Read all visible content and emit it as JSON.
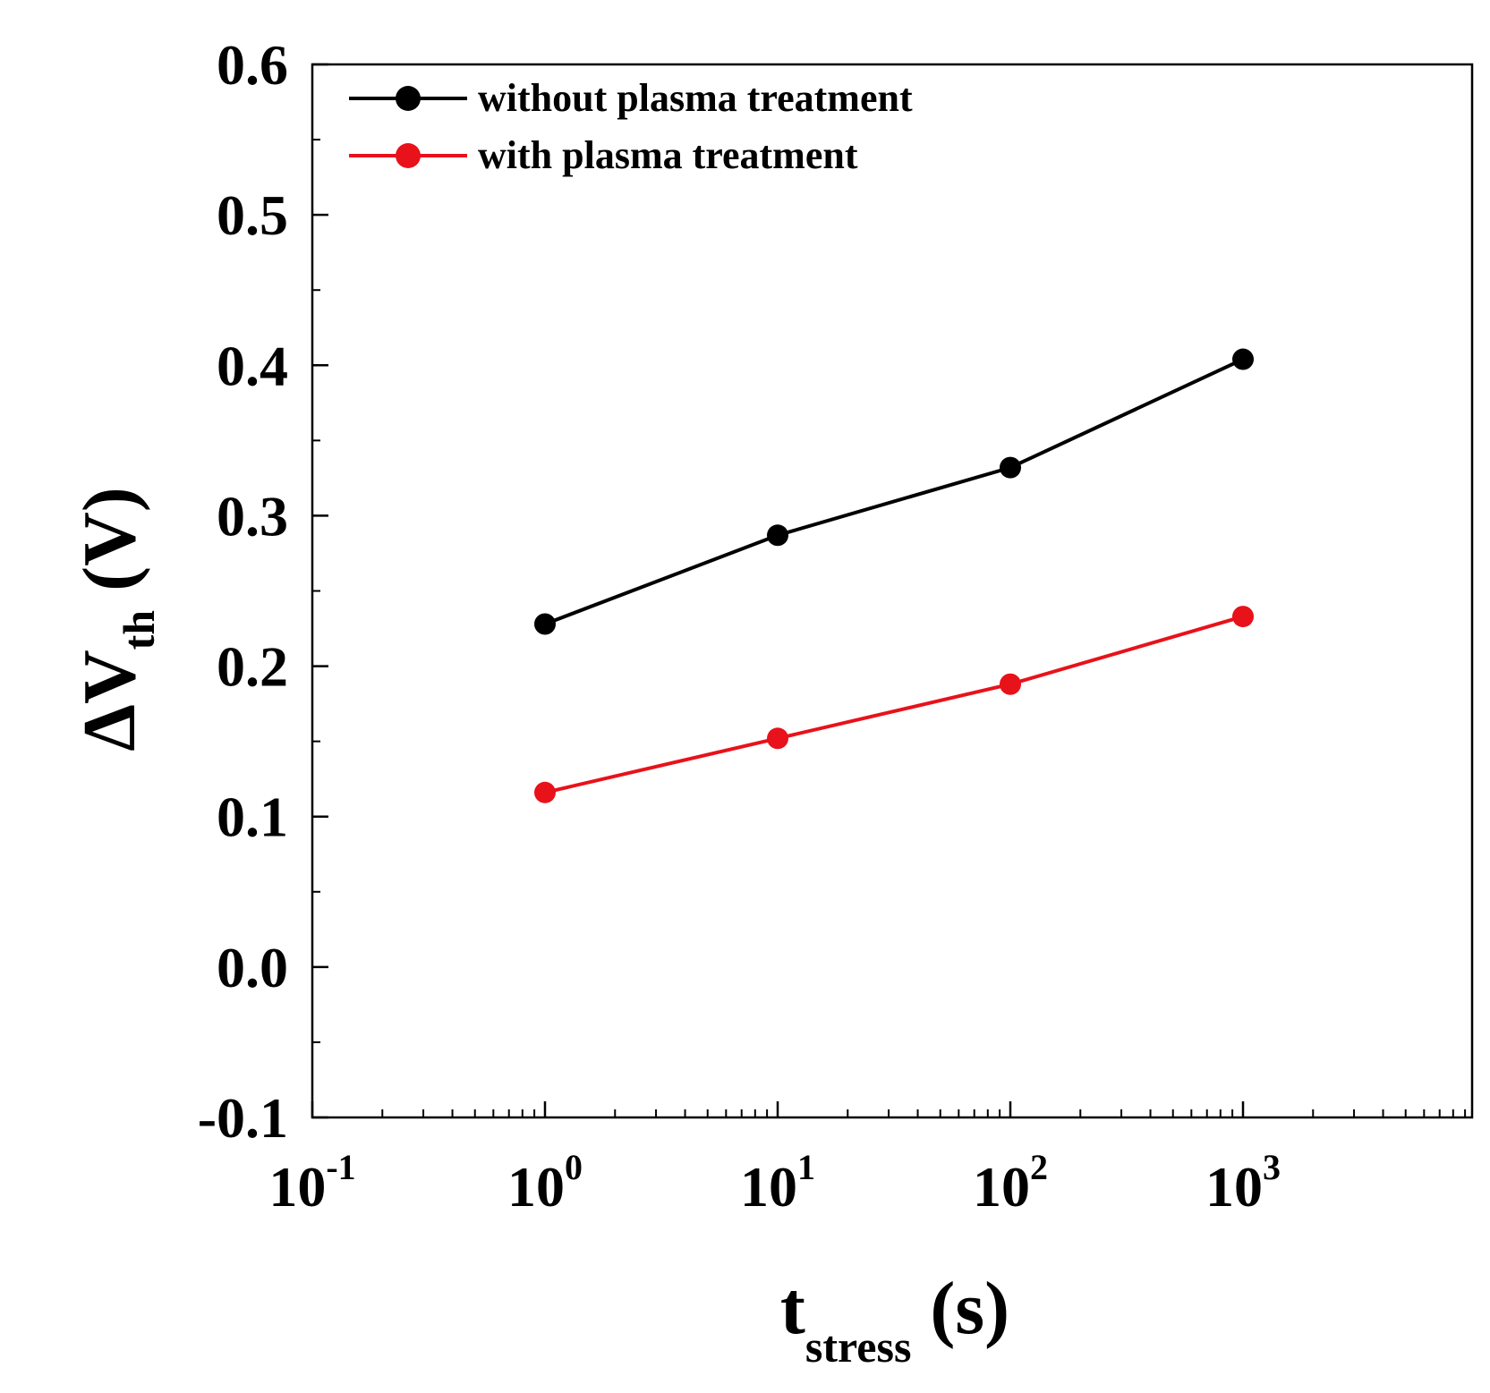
{
  "chart_data": {
    "type": "line",
    "xscale": "log",
    "x_tick_values": [
      0.1,
      1,
      10,
      100,
      1000
    ],
    "x_tick_labels": [
      {
        "base": "10",
        "exp": "-1"
      },
      {
        "base": "10",
        "exp": "0"
      },
      {
        "base": "10",
        "exp": "1"
      },
      {
        "base": "10",
        "exp": "2"
      },
      {
        "base": "10",
        "exp": "3"
      }
    ],
    "xlim": [
      0.1,
      10000
    ],
    "ylim": [
      -0.1,
      0.6
    ],
    "y_ticks": [
      "0.6",
      "0.5",
      "0.4",
      "0.3",
      "0.2",
      "0.1",
      "0.0",
      "-0.1"
    ],
    "y_tick_values": [
      0.6,
      0.5,
      0.4,
      0.3,
      0.2,
      0.1,
      0.0,
      -0.1
    ],
    "xlabel": {
      "main": "t",
      "sub": "stress",
      "unit": " (s)"
    },
    "ylabel": {
      "main": "ΔV",
      "sub": "th",
      "unit": " (V)"
    },
    "legend_position": "top-left",
    "grid": false,
    "series": [
      {
        "name": "without plasma treatment",
        "color": "#000000",
        "x": [
          1,
          10,
          100,
          1000
        ],
        "y": [
          0.228,
          0.287,
          0.332,
          0.404
        ]
      },
      {
        "name": "with plasma treatment",
        "color": "#e8121a",
        "x": [
          1,
          10,
          100,
          1000
        ],
        "y": [
          0.116,
          0.152,
          0.188,
          0.233
        ]
      }
    ]
  }
}
